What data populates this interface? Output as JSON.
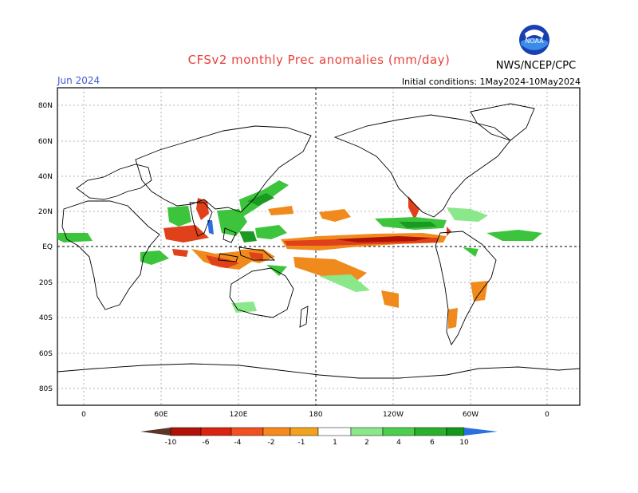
{
  "header": {
    "title": "CFSv2 monthly Prec anomalies (mm/day)",
    "month": "Jun 2024",
    "initial_conditions": "Initial conditions: 1May2024-10May2024",
    "agency": "NWS/NCEP/CPC",
    "logo_text": "NOAA"
  },
  "axes": {
    "lat_labels": [
      "80N",
      "60N",
      "40N",
      "20N",
      "EQ",
      "20S",
      "40S",
      "60S",
      "80S"
    ],
    "lon_labels": [
      "0",
      "60E",
      "120E",
      "180",
      "120W",
      "60W",
      "0"
    ]
  },
  "colorbar": {
    "labels": [
      "-10",
      "-6",
      "-4",
      "-2",
      "-1",
      "1",
      "2",
      "4",
      "6",
      "10"
    ],
    "colors": [
      "#5a3626",
      "#b01208",
      "#d92410",
      "#f25020",
      "#f78a1c",
      "#f2a21c",
      "#ffffff",
      "#8ae88a",
      "#4ccf4c",
      "#2ab02a",
      "#14981a",
      "#0a8a14",
      "#2b6fe0"
    ]
  },
  "colors": {
    "title": "#e8403a",
    "month": "#3d5bd6",
    "wet": "#3cc43c",
    "dry": "#f08a1c",
    "very_dry": "#d92410"
  }
}
